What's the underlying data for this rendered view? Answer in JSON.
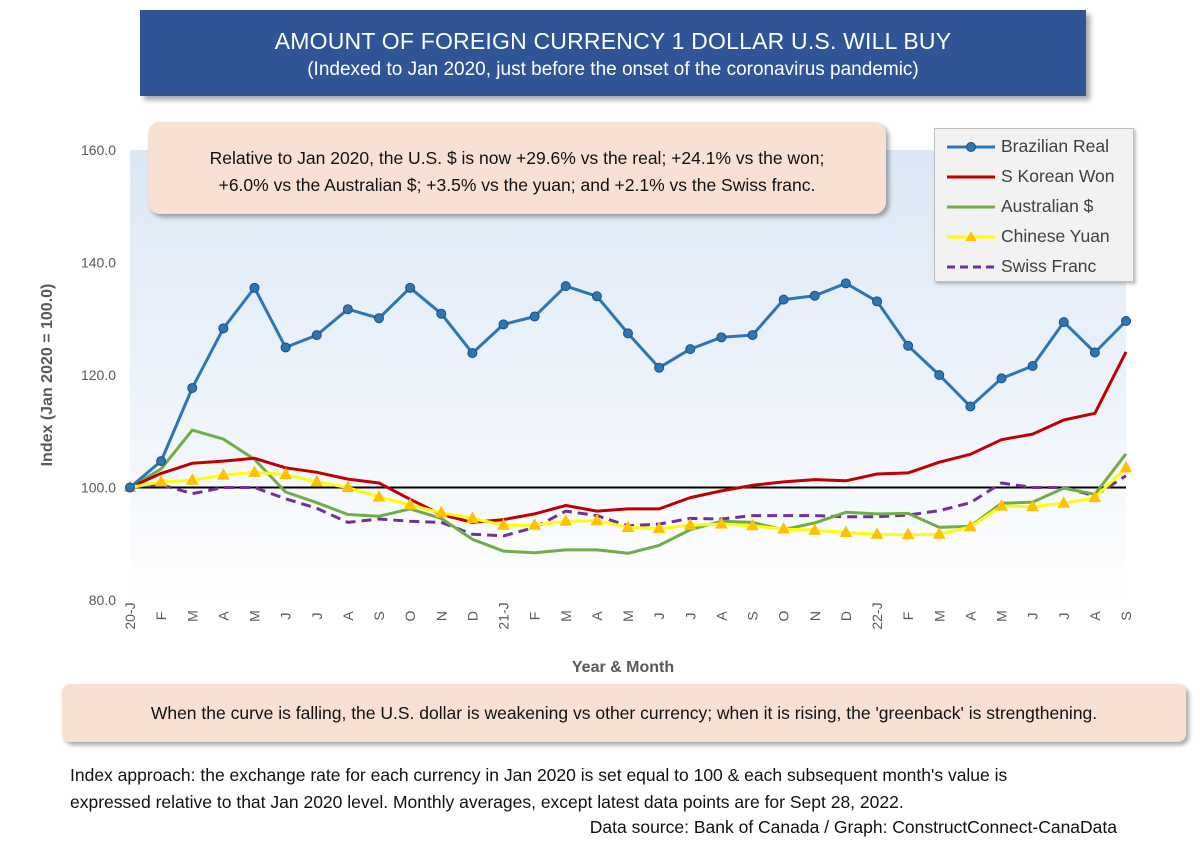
{
  "title": "AMOUNT OF FOREIGN CURRENCY 1 DOLLAR U.S. WILL BUY",
  "subtitle": "(Indexed to Jan 2020, just before the onset of the coronavirus pandemic)",
  "callout_top": {
    "line1": "Relative to Jan 2020, the U.S. $ is now +29.6% vs the real; +24.1% vs the won;",
    "line2": "+6.0% vs the Australian $; +3.5% vs the yuan; and +2.1% vs the Swiss franc."
  },
  "callout_bottom": "When the curve is falling, the U.S. dollar is weakening vs other currency; when it is rising, the 'greenback' is strengthening.",
  "note": {
    "line1": "Index approach: the exchange rate for each currency in Jan 2020 is set equal to 100 & each subsequent month's value is",
    "line2": "expressed relative to that Jan 2020 level. Monthly averages, except latest data points are for Sept 28, 2022."
  },
  "source": "Data source: Bank of Canada / Graph: ConstructConnect-CanaData",
  "chart_data": {
    "type": "line",
    "xlabel": "Year & Month",
    "ylabel": "Index (Jan 2020 = 100.0)",
    "ylim": [
      80,
      160
    ],
    "yticks": [
      "80.0",
      "100.0",
      "120.0",
      "140.0",
      "160.0"
    ],
    "reference_line": 100,
    "grid": false,
    "legend_position": "top-right",
    "categories": [
      "20-J",
      "F",
      "M",
      "A",
      "M",
      "J",
      "J",
      "A",
      "S",
      "O",
      "N",
      "D",
      "21-J",
      "F",
      "M",
      "A",
      "M",
      "J",
      "J",
      "A",
      "S",
      "O",
      "N",
      "D",
      "22-J",
      "F",
      "M",
      "A",
      "M",
      "J",
      "J",
      "A",
      "S"
    ],
    "series": [
      {
        "name": "Brazilian Real",
        "color": "#2e75b6",
        "marker": "circle",
        "dash": "solid",
        "values": [
          100,
          104.7,
          117.7,
          128.3,
          135.5,
          124.9,
          127.1,
          131.7,
          130.1,
          135.5,
          130.9,
          123.9,
          129.0,
          130.4,
          135.8,
          134.0,
          127.4,
          121.3,
          124.6,
          126.7,
          127.1,
          133.4,
          134.1,
          136.3,
          133.1,
          125.2,
          120.0,
          114.4,
          119.4,
          121.6,
          129.4,
          124.0,
          129.6
        ]
      },
      {
        "name": "S Korean Won",
        "color": "#c00000",
        "marker": "none",
        "dash": "solid",
        "values": [
          100,
          102.5,
          104.3,
          104.7,
          105.2,
          103.5,
          102.7,
          101.5,
          100.8,
          97.9,
          95.2,
          93.8,
          94.3,
          95.3,
          96.8,
          95.8,
          96.2,
          96.2,
          98.2,
          99.4,
          100.4,
          101.0,
          101.4,
          101.2,
          102.4,
          102.6,
          104.5,
          105.9,
          108.5,
          109.5,
          112.0,
          113.2,
          124.1
        ]
      },
      {
        "name": "Australian $",
        "color": "#70ad47",
        "marker": "none",
        "dash": "solid",
        "values": [
          100,
          103.3,
          110.2,
          108.6,
          105.0,
          99.2,
          97.3,
          95.2,
          94.9,
          96.2,
          94.5,
          90.8,
          88.7,
          88.4,
          88.9,
          88.9,
          88.3,
          89.7,
          92.5,
          94.0,
          93.8,
          92.5,
          93.7,
          95.6,
          95.3,
          95.4,
          92.9,
          93.1,
          97.2,
          97.4,
          99.9,
          98.8,
          106.0
        ]
      },
      {
        "name": "Chinese Yuan",
        "color": "#ffff00",
        "marker": "triangle",
        "dash": "solid",
        "values": [
          100,
          101.0,
          101.3,
          102.2,
          102.7,
          102.3,
          101.0,
          100.0,
          98.3,
          96.9,
          95.5,
          94.5,
          93.3,
          93.3,
          94.0,
          94.1,
          92.9,
          92.7,
          93.3,
          93.5,
          93.2,
          92.6,
          92.4,
          92.0,
          91.7,
          91.6,
          91.7,
          93.0,
          96.7,
          96.6,
          97.2,
          98.2,
          103.5
        ]
      },
      {
        "name": "Swiss Franc",
        "color": "#7030a0",
        "marker": "none",
        "dash": "dash",
        "values": [
          100,
          100.5,
          98.9,
          100.0,
          100.0,
          98.0,
          96.3,
          93.8,
          94.4,
          94.0,
          93.8,
          91.7,
          91.4,
          92.9,
          95.8,
          95.0,
          93.2,
          93.5,
          94.5,
          94.4,
          95.0,
          95.0,
          95.0,
          94.8,
          94.8,
          95.1,
          95.9,
          97.3,
          100.8,
          100.0,
          100.0,
          98.5,
          102.1
        ]
      }
    ]
  }
}
